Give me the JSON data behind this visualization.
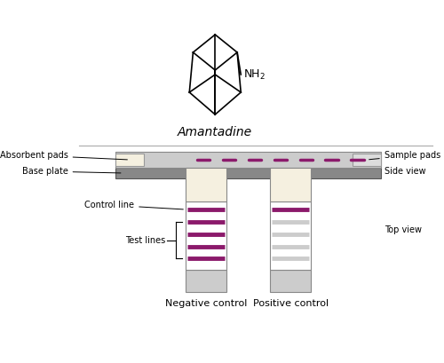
{
  "title": "Amantadine",
  "background_color": "#ffffff",
  "purple_color": "#8B1A6B",
  "gray_color": "#888888",
  "dark_gray": "#555555",
  "light_beige": "#F5F0E0",
  "light_gray_strip": "#CCCCCC",
  "side_view_label": "Side view",
  "top_view_label": "Top view",
  "absorbent_pads_label": "Absorbent pads",
  "base_plate_label": "Base plate",
  "sample_pads_label": "Sample pads",
  "control_line_label": "Control line",
  "test_lines_label": "Test lines",
  "negative_control_label": "Negative control",
  "positive_control_label": "Positive control"
}
